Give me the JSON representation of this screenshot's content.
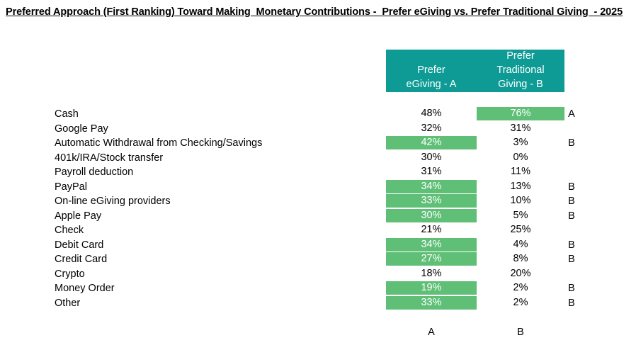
{
  "chart_data": {
    "type": "table",
    "title": "Preferred Approach (First Ranking) Toward Making  Monetary Contributions -  Prefer eGiving vs. Prefer Traditional Giving  - 2025",
    "columns": [
      {
        "label": "Prefer eGiving - A",
        "lines": [
          "Prefer",
          "eGiving - A"
        ],
        "letter": "A"
      },
      {
        "label": "Prefer Traditional Giving - B",
        "lines": [
          "Prefer",
          "Traditional",
          "Giving - B"
        ],
        "letter": "B"
      }
    ],
    "rows": [
      {
        "label": "Cash",
        "a": "48%",
        "b": "76%",
        "a_value": 48,
        "b_value": 76,
        "highlight": "b",
        "sig": "A"
      },
      {
        "label": "Google Pay",
        "a": "32%",
        "b": "31%",
        "a_value": 32,
        "b_value": 31,
        "highlight": "",
        "sig": ""
      },
      {
        "label": "Automatic Withdrawal from Checking/Savings",
        "a": "42%",
        "b": "3%",
        "a_value": 42,
        "b_value": 3,
        "highlight": "a",
        "sig": "B"
      },
      {
        "label": "401k/IRA/Stock transfer",
        "a": "30%",
        "b": "0%",
        "a_value": 30,
        "b_value": 0,
        "highlight": "",
        "sig": ""
      },
      {
        "label": "Payroll deduction",
        "a": "31%",
        "b": "11%",
        "a_value": 31,
        "b_value": 11,
        "highlight": "",
        "sig": ""
      },
      {
        "label": "PayPal",
        "a": "34%",
        "b": "13%",
        "a_value": 34,
        "b_value": 13,
        "highlight": "a",
        "sig": "B"
      },
      {
        "label": "On-line eGiving providers",
        "a": "33%",
        "b": "10%",
        "a_value": 33,
        "b_value": 10,
        "highlight": "a",
        "sig": "B"
      },
      {
        "label": "Apple Pay",
        "a": "30%",
        "b": "5%",
        "a_value": 30,
        "b_value": 5,
        "highlight": "a",
        "sig": "B"
      },
      {
        "label": "Check",
        "a": "21%",
        "b": "25%",
        "a_value": 21,
        "b_value": 25,
        "highlight": "",
        "sig": ""
      },
      {
        "label": "Debit Card",
        "a": "34%",
        "b": "4%",
        "a_value": 34,
        "b_value": 4,
        "highlight": "a",
        "sig": "B"
      },
      {
        "label": "Credit Card",
        "a": "27%",
        "b": "8%",
        "a_value": 27,
        "b_value": 8,
        "highlight": "a",
        "sig": "B"
      },
      {
        "label": "Crypto",
        "a": "18%",
        "b": "20%",
        "a_value": 18,
        "b_value": 20,
        "highlight": "",
        "sig": ""
      },
      {
        "label": "Money Order",
        "a": "19%",
        "b": "2%",
        "a_value": 19,
        "b_value": 2,
        "highlight": "a",
        "sig": "B"
      },
      {
        "label": "Other",
        "a": "33%",
        "b": "2%",
        "a_value": 33,
        "b_value": 2,
        "highlight": "a",
        "sig": "B"
      }
    ],
    "footer": [
      "A",
      "B"
    ],
    "colors": {
      "header": "#0e9b96",
      "highlight": "#5fbf76",
      "text": "#000000",
      "highlight_text": "#ffffff"
    }
  }
}
